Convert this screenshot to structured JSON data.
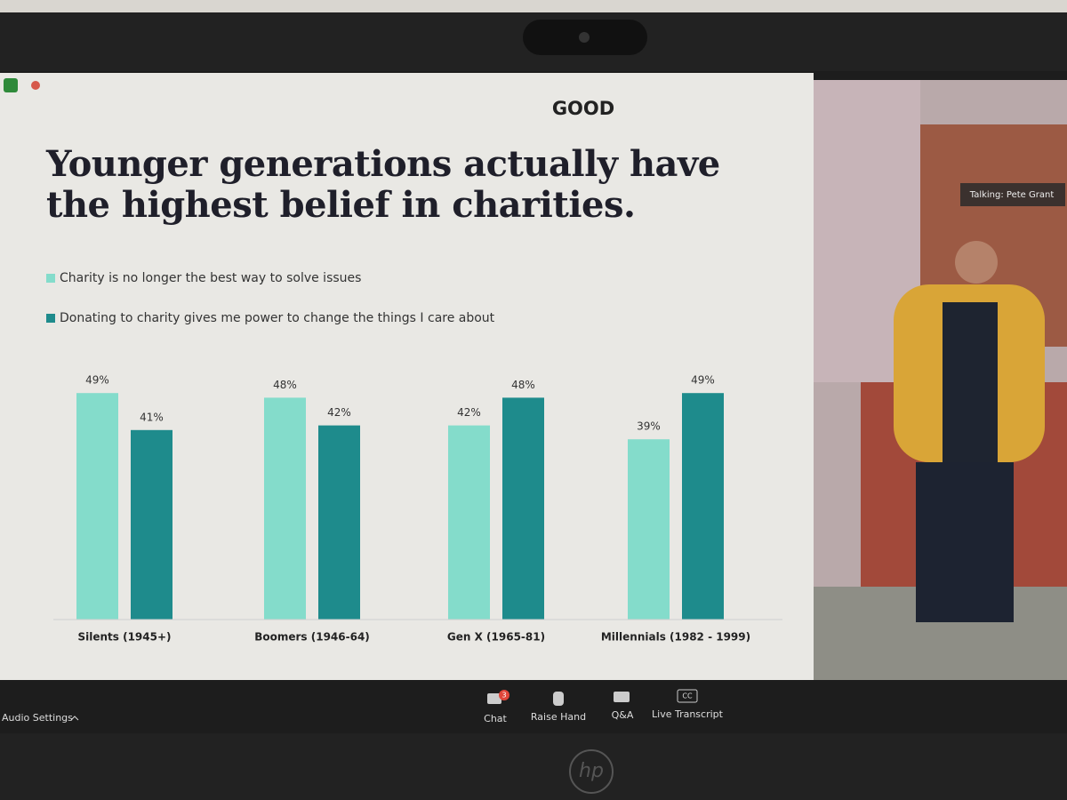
{
  "slide": {
    "brand": "GOOD"
  },
  "chart_data": {
    "type": "bar",
    "title": "Younger generations actually have the highest belief in charities.",
    "categories": [
      "Silents (1945+)",
      "Boomers (1946-64)",
      "Gen X (1965-81)",
      "Millennials (1982 - 1999)"
    ],
    "series": [
      {
        "name": "Charity is no longer the best way to solve issues",
        "color": "#84dccb",
        "values": [
          49,
          48,
          42,
          39
        ],
        "value_labels": [
          "49%",
          "48%",
          "42%",
          "39%"
        ]
      },
      {
        "name": "Donating to charity gives me power to change the things I care about",
        "color": "#1e8b8c",
        "values": [
          41,
          42,
          48,
          49
        ],
        "value_labels": [
          "41%",
          "42%",
          "48%",
          "49%"
        ]
      }
    ]
  },
  "video": {
    "speaker": "Talking: Pete Grant"
  },
  "toolbar": {
    "audio": "Audio Settings",
    "chat": "Chat",
    "chat_badge": "3",
    "raise_hand": "Raise Hand",
    "qa": "Q&A",
    "cc_icon": "CC",
    "transcript": "Live Transcript"
  },
  "laptop": {
    "logo": "hp"
  }
}
